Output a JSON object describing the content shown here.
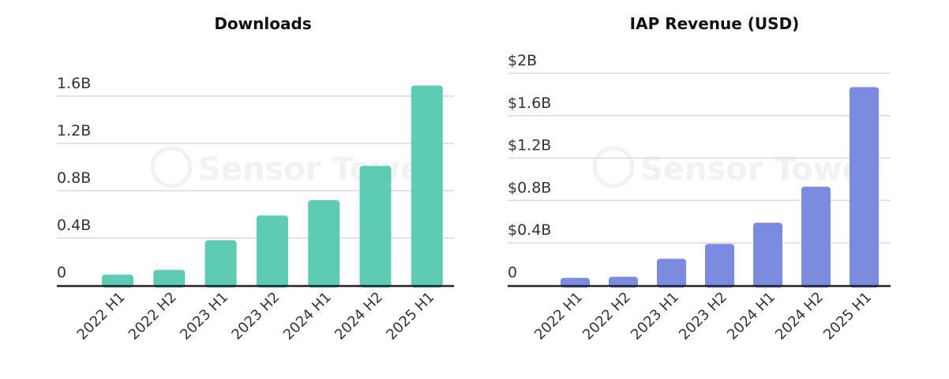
{
  "watermark": "Sensor Tower",
  "chart_data": [
    {
      "type": "bar",
      "title": "Downloads",
      "categories": [
        "2022 H1",
        "2022 H2",
        "2023 H1",
        "2023 H2",
        "2024 H1",
        "2024 H2",
        "2025 H1"
      ],
      "values": [
        0.09,
        0.13,
        0.38,
        0.59,
        0.72,
        1.01,
        1.69
      ],
      "unit": "B",
      "ylim": [
        0,
        1.6
      ],
      "yticks": [
        0,
        0.4,
        0.8,
        1.2,
        1.6
      ],
      "ytick_labels": [
        "0",
        "0.4B",
        "0.8B",
        "1.2B",
        "1.6B"
      ],
      "grid": true,
      "color": "#5ecbb5"
    },
    {
      "type": "bar",
      "title": "IAP Revenue (USD)",
      "categories": [
        "2022 H1",
        "2022 H2",
        "2023 H1",
        "2023 H2",
        "2024 H1",
        "2024 H2",
        "2025 H1"
      ],
      "values": [
        0.07,
        0.08,
        0.25,
        0.39,
        0.59,
        0.93,
        1.87
      ],
      "unit": "$B",
      "ylim": [
        0,
        2
      ],
      "yticks": [
        0,
        0.4,
        0.8,
        1.2,
        1.6,
        2
      ],
      "ytick_labels": [
        "0",
        "$0.4B",
        "$0.8B",
        "$1.2B",
        "$1.6B",
        "$2B"
      ],
      "grid": true,
      "color": "#7b8ce0"
    }
  ]
}
